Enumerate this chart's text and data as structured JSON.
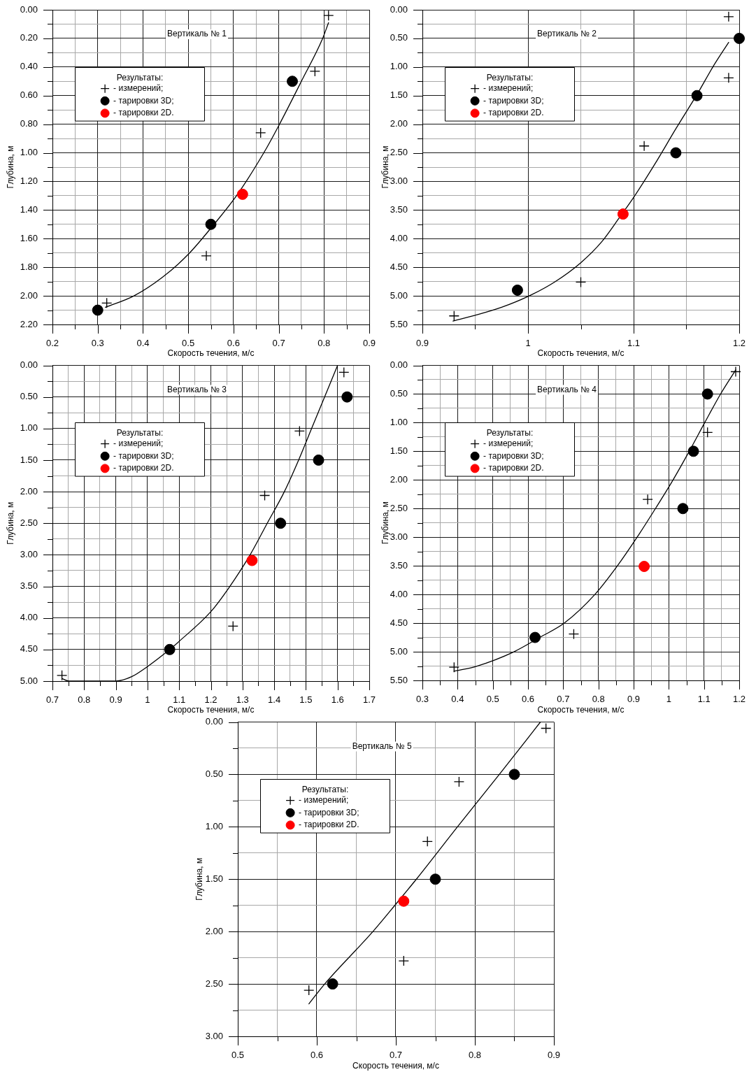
{
  "chart_data": [
    {
      "type": "scatter",
      "title": "Вертикаль № 1",
      "xlabel": "Скорость течения, м/с",
      "ylabel": "Глубина, м",
      "legend_title": "Результаты:",
      "legend": "top left",
      "grid": true,
      "xlim": [
        0.2,
        0.9
      ],
      "xticks": [
        0.2,
        {
          "value": 0.25,
          "label": null
        },
        0.3,
        {
          "value": 0.35,
          "label": null
        },
        0.4,
        {
          "value": 0.45,
          "label": null
        },
        0.5,
        {
          "value": 0.55,
          "label": null
        },
        0.6,
        {
          "value": 0.65,
          "label": null
        },
        0.7,
        {
          "value": 0.75,
          "label": null
        },
        0.8,
        {
          "value": 0.85,
          "label": null
        },
        0.9
      ],
      "ylim": [
        2.2,
        0
      ],
      "yticks": [
        {
          "value": 0,
          "label": "0.00"
        },
        {
          "value": 0.1,
          "label": null
        },
        {
          "value": 0.2,
          "label": "0.20"
        },
        {
          "value": 0.3,
          "label": null
        },
        {
          "value": 0.4,
          "label": "0.40"
        },
        {
          "value": 0.5,
          "label": null
        },
        {
          "value": 0.6,
          "label": "0.60"
        },
        {
          "value": 0.7,
          "label": null
        },
        {
          "value": 0.8,
          "label": "0.80"
        },
        {
          "value": 0.9,
          "label": null
        },
        {
          "value": 1,
          "label": "1.00"
        },
        {
          "value": 1.1,
          "label": null
        },
        {
          "value": 1.2,
          "label": "1.20"
        },
        {
          "value": 1.3,
          "label": null
        },
        {
          "value": 1.4,
          "label": "1.40"
        },
        {
          "value": 1.5,
          "label": null
        },
        {
          "value": 1.6,
          "label": "1.60"
        },
        {
          "value": 1.7,
          "label": null
        },
        {
          "value": 1.8,
          "label": "1.80"
        },
        {
          "value": 1.9,
          "label": null
        },
        {
          "value": 2,
          "label": "2.00"
        },
        {
          "value": 2.1,
          "label": null
        },
        {
          "value": 2.2,
          "label": "2.20"
        }
      ],
      "series": [
        {
          "name": "- измерений;",
          "marker": "cross",
          "color": "#000000",
          "x": [
            0.81,
            0.78,
            0.66,
            0.54,
            0.32
          ],
          "values": [
            0.04,
            0.43,
            0.86,
            1.72,
            2.05
          ]
        },
        {
          "name": "- тарировки 3D;",
          "marker": "circle",
          "color": "#000000",
          "x": [
            0.73,
            0.55,
            0.3
          ],
          "values": [
            0.5,
            1.5,
            2.1
          ]
        },
        {
          "name": "- тарировки 2D.",
          "marker": "circle",
          "color": "#ff0000",
          "x": [
            0.62
          ],
          "values": [
            1.29
          ]
        },
        {
          "type": "line",
          "marker": "none",
          "color": "#000000",
          "x": [
            0.317,
            0.38,
            0.443,
            0.5,
            0.557,
            0.61,
            0.667,
            0.7,
            0.75,
            0.797,
            0.81
          ],
          "values": [
            2.08,
            2.0,
            1.87,
            1.71,
            1.5,
            1.285,
            1.0,
            0.81,
            0.5,
            0.2,
            0.09
          ]
        }
      ]
    },
    {
      "type": "scatter",
      "title": "Вертикаль № 2",
      "xlabel": "Скорость течения, м/с",
      "ylabel": "Глубина, м",
      "legend_title": "Результаты:",
      "legend": "top left",
      "grid": true,
      "xlim": [
        0.9,
        1.2
      ],
      "xticks": [
        0.9,
        {
          "value": 0.95,
          "label": null
        },
        1,
        {
          "value": 1.05,
          "label": null
        },
        1.1,
        {
          "value": 1.15,
          "label": null
        },
        1.2
      ],
      "ylim": [
        5.5,
        0
      ],
      "yticks": [
        {
          "value": 0,
          "label": "0.00"
        },
        {
          "value": 0.25,
          "label": null
        },
        {
          "value": 0.5,
          "label": "0.50"
        },
        {
          "value": 0.75,
          "label": null
        },
        {
          "value": 1,
          "label": "1.00"
        },
        {
          "value": 1.25,
          "label": null
        },
        {
          "value": 1.5,
          "label": "1.50"
        },
        {
          "value": 1.75,
          "label": null
        },
        {
          "value": 2,
          "label": "2.00"
        },
        {
          "value": 2.25,
          "label": null
        },
        {
          "value": 2.5,
          "label": "2.50"
        },
        {
          "value": 2.75,
          "label": null
        },
        {
          "value": 3,
          "label": "3.00"
        },
        {
          "value": 3.25,
          "label": null
        },
        {
          "value": 3.5,
          "label": "3.50"
        },
        {
          "value": 3.75,
          "label": null
        },
        {
          "value": 4,
          "label": "4.00"
        },
        {
          "value": 4.25,
          "label": null
        },
        {
          "value": 4.5,
          "label": "4.50"
        },
        {
          "value": 4.75,
          "label": null
        },
        {
          "value": 5,
          "label": "5.00"
        },
        {
          "value": 5.25,
          "label": null
        },
        {
          "value": 5.5,
          "label": "5.50"
        }
      ],
      "series": [
        {
          "name": "- измерений;",
          "marker": "cross",
          "color": "#000000",
          "x": [
            1.19,
            1.19,
            1.11,
            1.05,
            0.93
          ],
          "values": [
            0.12,
            1.19,
            2.38,
            4.76,
            5.35
          ]
        },
        {
          "name": "- тарировки 3D;",
          "marker": "circle",
          "color": "#000000",
          "x": [
            1.2,
            1.16,
            1.14,
            0.99
          ],
          "values": [
            0.5,
            1.5,
            2.5,
            4.9
          ]
        },
        {
          "name": "- тарировки 2D.",
          "marker": "circle",
          "color": "#ff0000",
          "x": [
            1.09
          ],
          "values": [
            3.57
          ]
        },
        {
          "type": "line",
          "marker": "none",
          "color": "#000000",
          "x": [
            0.929,
            0.95,
            0.975,
            1.0,
            1.025,
            1.05,
            1.07,
            1.087,
            1.1,
            1.12,
            1.14,
            1.161,
            1.175,
            1.19
          ],
          "values": [
            5.44,
            5.34,
            5.2,
            5.01,
            4.76,
            4.42,
            4.05,
            3.62,
            3.28,
            2.7,
            2.08,
            1.45,
            1.0,
            0.57
          ]
        }
      ]
    },
    {
      "type": "scatter",
      "title": "Вертикаль № 3",
      "xlabel": "Скорость течения, м/с",
      "ylabel": "Глубина, м",
      "legend_title": "Результаты:",
      "legend": "top left",
      "grid": true,
      "xlim": [
        0.7,
        1.7
      ],
      "xticks": [
        0.7,
        {
          "value": 0.75,
          "label": null
        },
        0.8,
        {
          "value": 0.85,
          "label": null
        },
        0.9,
        {
          "value": 0.95,
          "label": null
        },
        1,
        {
          "value": 1.05,
          "label": null
        },
        1.1,
        {
          "value": 1.15,
          "label": null
        },
        1.2,
        {
          "value": 1.25,
          "label": null
        },
        1.3,
        {
          "value": 1.35,
          "label": null
        },
        1.4,
        {
          "value": 1.45,
          "label": null
        },
        1.5,
        {
          "value": 1.55,
          "label": null
        },
        1.6,
        {
          "value": 1.65,
          "label": null
        },
        1.7
      ],
      "ylim": [
        5,
        0
      ],
      "yticks": [
        {
          "value": 0,
          "label": "0.00"
        },
        {
          "value": 0.25,
          "label": null
        },
        {
          "value": 0.5,
          "label": "0.50"
        },
        {
          "value": 0.75,
          "label": null
        },
        {
          "value": 1,
          "label": "1.00"
        },
        {
          "value": 1.25,
          "label": null
        },
        {
          "value": 1.5,
          "label": "1.50"
        },
        {
          "value": 1.75,
          "label": null
        },
        {
          "value": 2,
          "label": "2.00"
        },
        {
          "value": 2.25,
          "label": null
        },
        {
          "value": 2.5,
          "label": "2.50"
        },
        {
          "value": 2.75,
          "label": null
        },
        {
          "value": 3,
          "label": "3.00"
        },
        {
          "value": 3.25,
          "label": null
        },
        {
          "value": 3.5,
          "label": "3.50"
        },
        {
          "value": 3.75,
          "label": null
        },
        {
          "value": 4,
          "label": "4.00"
        },
        {
          "value": 4.25,
          "label": null
        },
        {
          "value": 4.5,
          "label": "4.50"
        },
        {
          "value": 4.75,
          "label": null
        },
        {
          "value": 5,
          "label": "5.00"
        }
      ],
      "series": [
        {
          "name": "- измерений;",
          "marker": "cross",
          "color": "#000000",
          "x": [
            1.62,
            1.48,
            1.37,
            1.27,
            0.73
          ],
          "values": [
            0.11,
            1.04,
            2.06,
            4.13,
            4.91
          ]
        },
        {
          "name": "- тарировки 3D;",
          "marker": "circle",
          "color": "#000000",
          "x": [
            1.63,
            1.54,
            1.42,
            1.07
          ],
          "values": [
            0.5,
            1.5,
            2.5,
            4.5
          ]
        },
        {
          "name": "- тарировки 2D.",
          "marker": "circle",
          "color": "#ff0000",
          "x": [
            1.33
          ],
          "values": [
            3.09
          ]
        },
        {
          "type": "line",
          "marker": "none",
          "color": "#000000",
          "x": [
            0.73,
            0.753,
            0.9,
            0.95,
            1.0,
            1.07,
            1.1,
            1.2,
            1.26,
            1.324,
            1.378,
            1.432,
            1.477,
            1.518,
            1.559,
            1.6
          ],
          "values": [
            4.96,
            5.0,
            5.0,
            4.93,
            4.77,
            4.5,
            4.37,
            3.9,
            3.5,
            3.0,
            2.5,
            2.0,
            1.5,
            1.0,
            0.5,
            0.0
          ]
        }
      ]
    },
    {
      "type": "scatter",
      "title": "Вертикаль № 4",
      "xlabel": "Скорость течения, м/с",
      "ylabel": "Глубина, м",
      "legend_title": "Результаты:",
      "legend": "top left",
      "grid": true,
      "xlim": [
        0.3,
        1.2
      ],
      "xticks": [
        0.3,
        {
          "value": 0.35,
          "label": null
        },
        0.4,
        {
          "value": 0.45,
          "label": null
        },
        0.5,
        {
          "value": 0.55,
          "label": null
        },
        0.6,
        {
          "value": 0.65,
          "label": null
        },
        0.7,
        {
          "value": 0.75,
          "label": null
        },
        0.8,
        {
          "value": 0.85,
          "label": null
        },
        0.9,
        {
          "value": 0.95,
          "label": null
        },
        1,
        {
          "value": 1.05,
          "label": null
        },
        1.1,
        {
          "value": 1.15,
          "label": null
        },
        1.2
      ],
      "ylim": [
        5.5,
        0
      ],
      "yticks": [
        {
          "value": 0,
          "label": "0.00"
        },
        {
          "value": 0.25,
          "label": null
        },
        {
          "value": 0.5,
          "label": "0.50"
        },
        {
          "value": 0.75,
          "label": null
        },
        {
          "value": 1,
          "label": "1.00"
        },
        {
          "value": 1.25,
          "label": null
        },
        {
          "value": 1.5,
          "label": "1.50"
        },
        {
          "value": 1.75,
          "label": null
        },
        {
          "value": 2,
          "label": "2.00"
        },
        {
          "value": 2.25,
          "label": null
        },
        {
          "value": 2.5,
          "label": "2.50"
        },
        {
          "value": 2.75,
          "label": null
        },
        {
          "value": 3,
          "label": "3.00"
        },
        {
          "value": 3.25,
          "label": null
        },
        {
          "value": 3.5,
          "label": "3.50"
        },
        {
          "value": 3.75,
          "label": null
        },
        {
          "value": 4,
          "label": "4.00"
        },
        {
          "value": 4.25,
          "label": null
        },
        {
          "value": 4.5,
          "label": "4.50"
        },
        {
          "value": 4.75,
          "label": null
        },
        {
          "value": 5,
          "label": "5.00"
        },
        {
          "value": 5.25,
          "label": null
        },
        {
          "value": 5.5,
          "label": "5.50"
        }
      ],
      "series": [
        {
          "name": "- измерений;",
          "marker": "cross",
          "color": "#000000",
          "x": [
            1.19,
            1.11,
            0.94,
            0.73,
            0.39
          ],
          "values": [
            0.11,
            1.17,
            2.34,
            4.69,
            5.27
          ]
        },
        {
          "name": "- тарировки 3D;",
          "marker": "circle",
          "color": "#000000",
          "x": [
            1.11,
            1.07,
            1.04,
            0.62
          ],
          "values": [
            0.5,
            1.5,
            2.5,
            4.75
          ]
        },
        {
          "name": "- тарировки 2D.",
          "marker": "circle",
          "color": "#ff0000",
          "x": [
            0.93
          ],
          "values": [
            3.51
          ]
        },
        {
          "type": "line",
          "marker": "none",
          "color": "#000000",
          "x": [
            0.39,
            0.455,
            0.56,
            0.633,
            0.703,
            0.79,
            0.854,
            0.91,
            0.962,
            1.012,
            1.058,
            1.102,
            1.147,
            1.19
          ],
          "values": [
            5.34,
            5.25,
            5.0,
            4.75,
            4.5,
            4.0,
            3.5,
            3.0,
            2.5,
            2.0,
            1.5,
            1.0,
            0.5,
            0.08
          ]
        }
      ]
    },
    {
      "type": "scatter",
      "title": "Вертикаль № 5",
      "xlabel": "Скорость течения, м/с",
      "ylabel": "Глубина, м",
      "legend_title": "Результаты:",
      "legend": "top left",
      "grid": true,
      "xlim": [
        0.5,
        0.9
      ],
      "xticks": [
        0.5,
        {
          "value": 0.55,
          "label": null
        },
        0.6,
        {
          "value": 0.65,
          "label": null
        },
        0.7,
        {
          "value": 0.75,
          "label": null
        },
        0.8,
        {
          "value": 0.85,
          "label": null
        },
        0.9
      ],
      "ylim": [
        3,
        0
      ],
      "yticks": [
        {
          "value": 0,
          "label": "0.00"
        },
        {
          "value": 0.25,
          "label": null
        },
        {
          "value": 0.5,
          "label": "0.50"
        },
        {
          "value": 0.75,
          "label": null
        },
        {
          "value": 1,
          "label": "1.00"
        },
        {
          "value": 1.25,
          "label": null
        },
        {
          "value": 1.5,
          "label": "1.50"
        },
        {
          "value": 1.75,
          "label": null
        },
        {
          "value": 2,
          "label": "2.00"
        },
        {
          "value": 2.25,
          "label": null
        },
        {
          "value": 2.5,
          "label": "2.50"
        },
        {
          "value": 2.75,
          "label": null
        },
        {
          "value": 3,
          "label": "3.00"
        }
      ],
      "series": [
        {
          "name": "- измерений;",
          "marker": "cross",
          "color": "#000000",
          "x": [
            0.89,
            0.78,
            0.74,
            0.71,
            0.59
          ],
          "values": [
            0.06,
            0.57,
            1.14,
            2.28,
            2.56
          ]
        },
        {
          "name": "- тарировки 3D;",
          "marker": "circle",
          "color": "#000000",
          "x": [
            0.85,
            0.75,
            0.62
          ],
          "values": [
            0.5,
            1.5,
            2.5
          ]
        },
        {
          "name": "- тарировки 2D.",
          "marker": "circle",
          "color": "#ff0000",
          "x": [
            0.71
          ],
          "values": [
            1.71
          ]
        },
        {
          "type": "line",
          "marker": "none",
          "color": "#000000",
          "x": [
            0.59,
            0.61,
            0.671,
            0.702,
            0.726,
            0.778,
            0.831,
            0.883
          ],
          "values": [
            2.69,
            2.5,
            2.0,
            1.72,
            1.5,
            1.0,
            0.5,
            0.0
          ]
        }
      ]
    }
  ]
}
